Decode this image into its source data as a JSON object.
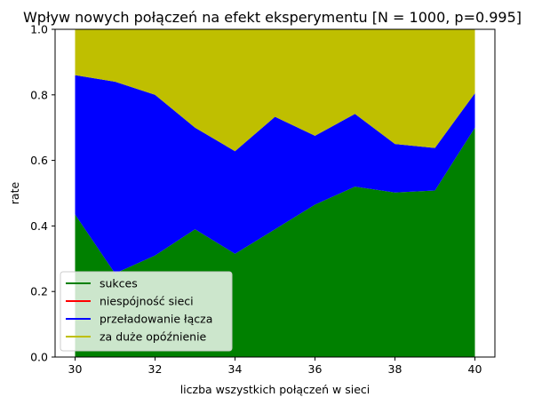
{
  "chart_data": {
    "type": "area",
    "title": "Wpływ nowych połączeń na efekt eksperymentu [N = 1000, p=0.995]",
    "xlabel": "liczba wszystkich połączeń w sieci",
    "ylabel": "rate",
    "x": [
      30,
      31,
      32,
      33,
      34,
      35,
      36,
      37,
      38,
      39,
      40
    ],
    "xlim": [
      29.5,
      40.5
    ],
    "ylim": [
      0,
      1
    ],
    "xticks": [
      30,
      32,
      34,
      36,
      38,
      40
    ],
    "yticks": [
      0.0,
      0.2,
      0.4,
      0.6,
      0.8,
      1.0
    ],
    "xtick_labels": [
      "30",
      "32",
      "34",
      "36",
      "38",
      "40"
    ],
    "ytick_labels": [
      "0.0",
      "0.2",
      "0.4",
      "0.6",
      "0.8",
      "1.0"
    ],
    "stacked": true,
    "grid": false,
    "legend_position": "lower-left",
    "series": [
      {
        "name": "sukces",
        "color": "#008000",
        "values": [
          0.435,
          0.255,
          0.31,
          0.39,
          0.315,
          0.39,
          0.465,
          0.52,
          0.502,
          0.508,
          0.7
        ]
      },
      {
        "name": "niespójność sieci",
        "color": "#ff0000",
        "values": [
          0,
          0,
          0,
          0,
          0,
          0,
          0,
          0,
          0,
          0,
          0
        ]
      },
      {
        "name": "przeładowanie łącza",
        "color": "#0000ff",
        "values": [
          0.425,
          0.585,
          0.49,
          0.31,
          0.313,
          0.343,
          0.21,
          0.222,
          0.148,
          0.13,
          0.105
        ]
      },
      {
        "name": "za duże opóźnienie",
        "color": "#bfbf00",
        "values": [
          0.14,
          0.16,
          0.2,
          0.3,
          0.372,
          0.267,
          0.325,
          0.258,
          0.35,
          0.362,
          0.195
        ]
      }
    ]
  }
}
